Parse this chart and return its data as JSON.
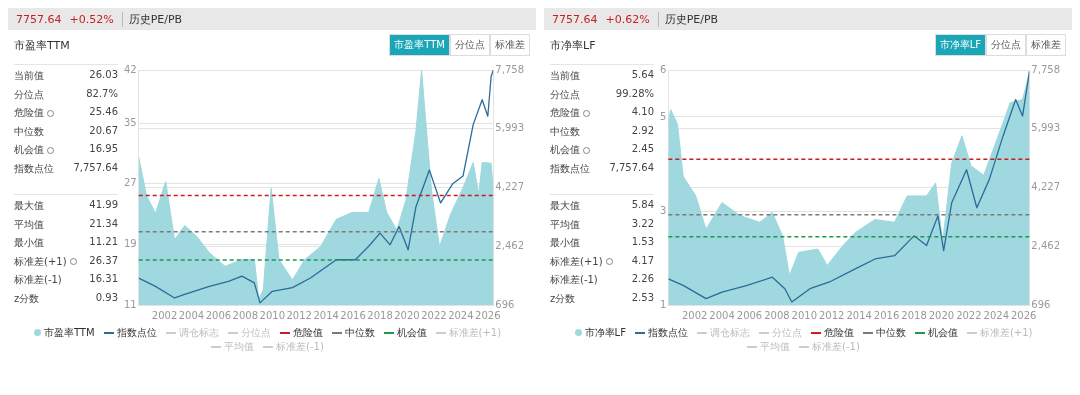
{
  "chart_data": [
    {
      "type": "area",
      "title": "历史PE/PB",
      "subtitle": "市盈率TTM",
      "annotations": [
        "7757.64",
        "+0.52%",
        "市盈率TTM",
        "分位点",
        "标准差",
        "当前值",
        "26.03",
        "分位点",
        "82.7%",
        "危险值",
        "25.46",
        "中位数",
        "20.67",
        "机会值",
        "16.95",
        "指数点位",
        "7,757.64",
        "最大值",
        "41.99",
        "平均值",
        "21.34",
        "最小值",
        "11.21",
        "标准差(+1)",
        "26.37",
        "标准差(-1)",
        "16.31",
        "z分数",
        "0.93",
        "调仓标志",
        "分位点",
        "标准差(+1)",
        "平均值",
        "标准差(-1)"
      ],
      "series": [
        {
          "name": "市盈率TTM",
          "type": "area",
          "color": "#9fd8df",
          "x": [
            "2000-02",
            "2000-09",
            "2001-05",
            "2002-02",
            "2002-10",
            "2003-07",
            "2004-06",
            "2005-05",
            "2006-07",
            "2007-10",
            "2008-09",
            "2009-01",
            "2009-05",
            "2009-12",
            "2010-07",
            "2011-07",
            "2012-06",
            "2013-08",
            "2014-10",
            "2015-12",
            "2017-03",
            "2017-12",
            "2018-07",
            "2019-04",
            "2019-12",
            "2020-09",
            "2021-02",
            "2021-07",
            "2021-11",
            "2022-06",
            "2023-04",
            "2024-03",
            "2024-12",
            "2025-05",
            "2025-08",
            "2026-04",
            "2026-06"
          ],
          "values": [
            30.5,
            25.4,
            23.1,
            27.3,
            19.6,
            21.5,
            20,
            17.9,
            16.1,
            17,
            17,
            11.8,
            13,
            26.4,
            17,
            14.3,
            17,
            18.7,
            22.3,
            23.2,
            23.2,
            27.7,
            23.2,
            20.9,
            24.8,
            34,
            41.99,
            33,
            26,
            18.7,
            23,
            26.5,
            29.8,
            25.6,
            29.8,
            29.7,
            26.03
          ]
        },
        {
          "name": "指数点位",
          "type": "line",
          "axis": "y2",
          "color": "#2a6c9a",
          "x": [
            "2000-02",
            "2001-05",
            "2002-10",
            "2003-07",
            "2005-05",
            "2006-10",
            "2007-10",
            "2008-09",
            "2009-02",
            "2010-01",
            "2011-07",
            "2012-11",
            "2014-10",
            "2016-03",
            "2017-03",
            "2018-01",
            "2018-10",
            "2019-06",
            "2020-02",
            "2020-09",
            "2021-09",
            "2022-07",
            "2023-06",
            "2024-03",
            "2024-12",
            "2025-08",
            "2026-01",
            "2026-04",
            "2026-06"
          ],
          "values": [
            1506,
            1257,
            907,
            1014,
            1257,
            1408,
            1564,
            1362,
            760,
            1107,
            1217,
            1506,
            2056,
            2056,
            2461,
            2855,
            2505,
            3055,
            2354,
            3650,
            4750,
            3763,
            4350,
            4574,
            6117,
            6866,
            6368,
            7563,
            7758
          ]
        }
      ],
      "xlim": [
        "2000-02",
        "2026-06"
      ],
      "xticks": [
        {
          "value": "2002-01-01",
          "label": "2002"
        },
        {
          "value": "2004-01-01",
          "label": "2004"
        },
        {
          "value": "2006-01-01",
          "label": "2006"
        },
        {
          "value": "2008-01-01",
          "label": "2008"
        },
        {
          "value": "2010-01-01",
          "label": "2010"
        },
        {
          "value": "2012-01-01",
          "label": "2012"
        },
        {
          "value": "2014-01-01",
          "label": "2014"
        },
        {
          "value": "2016-01-01",
          "label": "2016"
        },
        {
          "value": "2018-01-01",
          "label": "2018"
        },
        {
          "value": "2020-01-01",
          "label": "2020"
        },
        {
          "value": "2022-01-01",
          "label": "2022"
        },
        {
          "value": "2024-01-01",
          "label": "2024"
        },
        {
          "value": "2026-01-01",
          "label": "2026"
        }
      ],
      "ylim": [
        11,
        42
      ],
      "yticks": [
        11,
        19,
        27,
        35,
        42
      ],
      "y2lim": [
        696,
        7758
      ],
      "y2ticks": [
        696,
        {
          "value": 2462,
          "label": "2,462"
        },
        {
          "value": 4227,
          "label": "4,227"
        },
        {
          "value": 5993,
          "label": "5,993"
        },
        {
          "value": 7758,
          "label": "7,758"
        }
      ],
      "ref_lines": [
        {
          "axis": "y",
          "value": 25.46,
          "label": "危险值",
          "color": "#c81e1e",
          "line_style": "dashed"
        },
        {
          "axis": "y",
          "value": 20.67,
          "label": "中位数",
          "color": "#7a7a7a",
          "line_style": "dashed"
        },
        {
          "axis": "y",
          "value": 16.95,
          "label": "机会值",
          "color": "#1a9a4a",
          "line_style": "dashed"
        }
      ],
      "grid": "y",
      "legend": "bottom"
    },
    {
      "type": "area",
      "title": "历史PE/PB",
      "subtitle": "市净率LF",
      "annotations": [
        "7757.64",
        "+0.62%",
        "市净率LF",
        "分位点",
        "标准差",
        "当前值",
        "5.64",
        "分位点",
        "99.28%",
        "危险值",
        "4.10",
        "中位数",
        "2.92",
        "机会值",
        "2.45",
        "指数点位",
        "7,757.64",
        "最大值",
        "5.84",
        "平均值",
        "3.22",
        "最小值",
        "1.53",
        "标准差(+1)",
        "4.17",
        "标准差(-1)",
        "2.26",
        "z分数",
        "2.53",
        "调仓标志",
        "分位点",
        "标准差(+1)",
        "平均值",
        "标准差(-1)"
      ],
      "series": [
        {
          "name": "市净率LF",
          "type": "area",
          "color": "#9fd8df",
          "x": [
            "2000-02",
            "2000-04",
            "2000-10",
            "2001-03",
            "2002-02",
            "2002-11",
            "2004-01",
            "2005-05",
            "2006-10",
            "2007-09",
            "2008-06",
            "2008-12",
            "2009-08",
            "2011-01",
            "2011-09",
            "2012-11",
            "2013-10",
            "2015-03",
            "2016-08",
            "2017-07",
            "2018-12",
            "2019-08",
            "2020-02",
            "2020-10",
            "2021-07",
            "2022-03",
            "2023-02",
            "2024-07",
            "2025-01",
            "2025-12",
            "2026-05",
            "2026-06"
          ],
          "values": [
            4.88,
            5.16,
            4.85,
            3.74,
            3.32,
            2.61,
            3.18,
            2.9,
            2.76,
            2.97,
            2.47,
            1.63,
            2.12,
            2.19,
            1.84,
            2.27,
            2.55,
            2.82,
            2.76,
            3.32,
            3.32,
            3.6,
            2.33,
            4.02,
            4.6,
            3.96,
            3.76,
            4.88,
            5.3,
            5.37,
            5.84,
            5.64
          ]
        },
        {
          "name": "指数点位",
          "type": "line",
          "axis": "y2",
          "color": "#2a6c9a",
          "x": [
            "2000-02",
            "2001-03",
            "2002-11",
            "2004-01",
            "2005-11",
            "2007-09",
            "2008-08",
            "2009-02",
            "2010-06",
            "2011-11",
            "2013-10",
            "2015-03",
            "2016-08",
            "2018-01",
            "2018-12",
            "2019-10",
            "2020-03",
            "2020-10",
            "2021-11",
            "2022-08",
            "2023-07",
            "2024-07",
            "2025-06",
            "2025-12",
            "2026-05",
            "2026-06"
          ],
          "values": [
            1483,
            1284,
            886,
            1085,
            1284,
            1532,
            1186,
            788,
            1186,
            1388,
            1791,
            2079,
            2177,
            2774,
            2483,
            3376,
            2327,
            3768,
            4760,
            3618,
            4471,
            5777,
            6869,
            6374,
            7469,
            7714
          ]
        }
      ],
      "xlim": [
        "2000-02",
        "2026-06"
      ],
      "xticks": [
        {
          "value": "2002-01-01",
          "label": "2002"
        },
        {
          "value": "2004-01-01",
          "label": "2004"
        },
        {
          "value": "2006-01-01",
          "label": "2006"
        },
        {
          "value": "2008-01-01",
          "label": "2008"
        },
        {
          "value": "2010-01-01",
          "label": "2010"
        },
        {
          "value": "2012-01-01",
          "label": "2012"
        },
        {
          "value": "2014-01-01",
          "label": "2014"
        },
        {
          "value": "2016-01-01",
          "label": "2016"
        },
        {
          "value": "2018-01-01",
          "label": "2018"
        },
        {
          "value": "2020-01-01",
          "label": "2020"
        },
        {
          "value": "2022-01-01",
          "label": "2022"
        },
        {
          "value": "2024-01-01",
          "label": "2024"
        },
        {
          "value": "2026-01-01",
          "label": "2026"
        }
      ],
      "ylim": [
        1,
        6
      ],
      "yticks": [
        1,
        3,
        5,
        6
      ],
      "y2lim": [
        696,
        7758
      ],
      "y2ticks": [
        696,
        {
          "value": 2462,
          "label": "2,462"
        },
        {
          "value": 4227,
          "label": "4,227"
        },
        {
          "value": 5993,
          "label": "5,993"
        },
        {
          "value": 7758,
          "label": "7,758"
        }
      ],
      "ref_lines": [
        {
          "axis": "y",
          "value": 4.1,
          "label": "危险值",
          "color": "#c81e1e",
          "line_style": "dashed"
        },
        {
          "axis": "y",
          "value": 2.92,
          "label": "中位数",
          "color": "#7a7a7a",
          "line_style": "dashed"
        },
        {
          "axis": "y",
          "value": 2.45,
          "label": "机会值",
          "color": "#1a9a4a",
          "line_style": "dashed"
        }
      ],
      "grid": "y",
      "legend": "bottom"
    }
  ]
}
